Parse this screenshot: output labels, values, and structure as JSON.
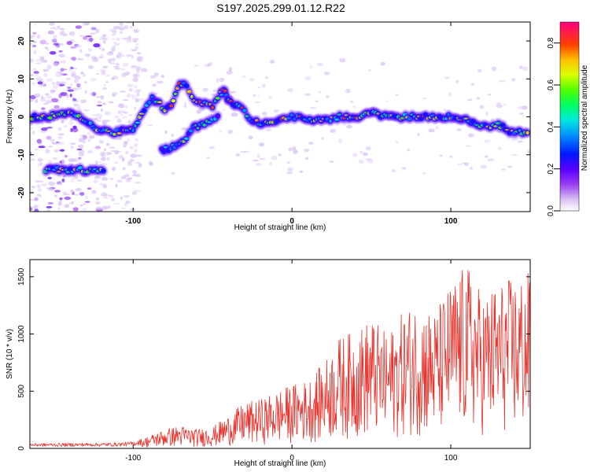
{
  "title": "S197.2025.299.01.12.R22",
  "chart_data": [
    {
      "type": "heatmap",
      "name": "spectrogram",
      "xlabel": "Height of straight line (km)",
      "ylabel": "Frequency (Hz)",
      "xlim": [
        -165,
        150
      ],
      "ylim": [
        -25,
        25
      ],
      "xticks": [
        -100,
        0,
        100
      ],
      "yticks": [
        -20,
        -10,
        0,
        10,
        20
      ],
      "colorbar": {
        "label": "Normalized spectral amplitude",
        "range": [
          0,
          0.9
        ],
        "ticks": [
          "0.0",
          "0.2",
          "0.4",
          "0.6",
          "0.8"
        ]
      },
      "ridges": [
        {
          "name": "main-trace",
          "points": [
            [
              -165,
              0
            ],
            [
              -155,
              0
            ],
            [
              -140,
              1
            ],
            [
              -118,
              -4
            ],
            [
              -110,
              -4
            ],
            [
              -100,
              -3
            ],
            [
              -93,
              2
            ],
            [
              -88,
              5
            ],
            [
              -85,
              4
            ],
            [
              -80,
              2
            ],
            [
              -76,
              3
            ],
            [
              -72,
              8
            ],
            [
              -68,
              9
            ],
            [
              -63,
              5
            ],
            [
              -58,
              4
            ],
            [
              -50,
              3
            ],
            [
              -45,
              6
            ],
            [
              -42,
              7
            ],
            [
              -40,
              4
            ],
            [
              -33,
              3
            ],
            [
              -25,
              -1
            ],
            [
              -15,
              -2
            ],
            [
              -10,
              -1
            ],
            [
              -5,
              0
            ],
            [
              0,
              0
            ],
            [
              5,
              0
            ],
            [
              10,
              -1
            ],
            [
              20,
              -1
            ],
            [
              30,
              0
            ],
            [
              40,
              0
            ],
            [
              50,
              1
            ],
            [
              60,
              0
            ],
            [
              70,
              0
            ],
            [
              80,
              0
            ],
            [
              90,
              0
            ],
            [
              100,
              0
            ],
            [
              110,
              -1
            ],
            [
              117,
              -2
            ],
            [
              125,
              -3
            ],
            [
              130,
              -2
            ],
            [
              137,
              -4
            ],
            [
              145,
              -4
            ],
            [
              150,
              -5
            ]
          ],
          "intensity": 0.7
        },
        {
          "name": "lower-branch",
          "points": [
            [
              -82,
              -9
            ],
            [
              -75,
              -8
            ],
            [
              -68,
              -6
            ],
            [
              -62,
              -3
            ],
            [
              -55,
              -2
            ],
            [
              -50,
              -1
            ],
            [
              -45,
              1
            ]
          ],
          "intensity": 0.55
        },
        {
          "name": "low-tone",
          "points": [
            [
              -155,
              -14
            ],
            [
              -145,
              -14
            ],
            [
              -138,
              -14
            ],
            [
              -130,
              -14
            ],
            [
              -122,
              -14
            ],
            [
              -117,
              -14
            ]
          ],
          "intensity": 0.65
        }
      ]
    },
    {
      "type": "line",
      "name": "snr",
      "xlabel": "Height of straight line (km)",
      "ylabel": "SNR (10 * v/v)",
      "xlim": [
        -165,
        150
      ],
      "ylim": [
        0,
        1650
      ],
      "xticks": [
        -100,
        0,
        100
      ],
      "yticks": [
        0,
        500,
        1000,
        1500
      ],
      "series": [
        {
          "name": "SNR",
          "color": "#e8332d",
          "envelope_x": [
            -165,
            -110,
            -100,
            -90,
            -80,
            -70,
            -60,
            -50,
            -40,
            -30,
            -20,
            -10,
            0,
            10,
            20,
            30,
            40,
            50,
            60,
            70,
            80,
            90,
            100,
            110,
            120,
            130,
            140,
            150
          ],
          "envelope_y": [
            45,
            50,
            60,
            110,
            170,
            200,
            170,
            190,
            290,
            400,
            430,
            500,
            560,
            600,
            750,
            980,
            1030,
            1150,
            1000,
            1200,
            1300,
            1200,
            1450,
            1620,
            1350,
            1460,
            1500,
            1550
          ]
        }
      ]
    }
  ]
}
